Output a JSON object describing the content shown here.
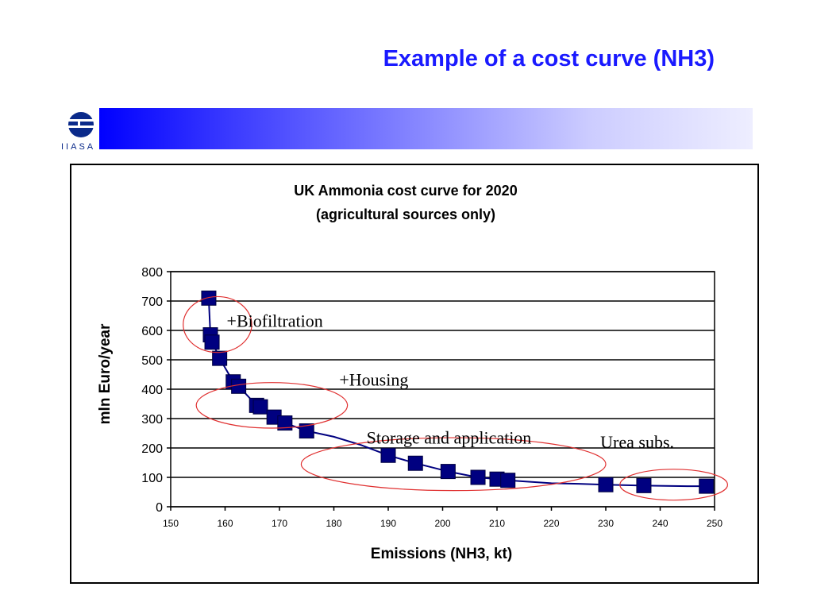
{
  "slide": {
    "title": "Example of a cost curve (NH3)",
    "logo_text": "IIASA"
  },
  "colors": {
    "title": "#1a1aff",
    "banner_start": "#0000ff",
    "banner_end": "#eeeeff",
    "series": "#000080",
    "ellipse": "#e03030"
  },
  "chart_data": {
    "type": "line",
    "title": "UK Ammonia cost curve for 2020",
    "subtitle": "(agricultural sources only)",
    "xlabel": "Emissions (NH3, kt)",
    "ylabel": "mln Euro/year",
    "xlim": [
      150,
      250
    ],
    "ylim": [
      0,
      800
    ],
    "xticks": [
      150,
      160,
      170,
      180,
      190,
      200,
      210,
      220,
      230,
      240,
      250
    ],
    "yticks": [
      0,
      100,
      200,
      300,
      400,
      500,
      600,
      700,
      800
    ],
    "grid": "horizontal",
    "series": [
      {
        "line": [
          [
            157,
            710
          ],
          [
            157.3,
            585
          ],
          [
            157.6,
            560
          ],
          [
            157.9,
            550
          ],
          [
            159,
            505
          ],
          [
            161.5,
            425
          ],
          [
            162.5,
            410
          ],
          [
            165.8,
            345
          ],
          [
            166.5,
            340
          ],
          [
            169,
            305
          ],
          [
            171,
            285
          ],
          [
            175,
            258
          ],
          [
            180,
            238
          ],
          [
            185,
            210
          ],
          [
            190,
            175
          ],
          [
            195,
            148
          ],
          [
            200,
            125
          ],
          [
            201,
            120
          ],
          [
            206.5,
            100
          ],
          [
            210,
            94
          ],
          [
            212,
            90
          ],
          [
            220,
            80
          ],
          [
            225,
            78
          ],
          [
            230,
            75
          ],
          [
            237,
            72
          ],
          [
            245,
            70
          ],
          [
            248.5,
            70
          ]
        ],
        "markers": [
          [
            157,
            710
          ],
          [
            157.3,
            585
          ],
          [
            157.6,
            560
          ],
          [
            159,
            505
          ],
          [
            161.5,
            425
          ],
          [
            162.5,
            410
          ],
          [
            165.8,
            345
          ],
          [
            166.5,
            340
          ],
          [
            169,
            305
          ],
          [
            171,
            285
          ],
          [
            175,
            258
          ],
          [
            190,
            175
          ],
          [
            195,
            148
          ],
          [
            201,
            120
          ],
          [
            206.5,
            100
          ],
          [
            210,
            94
          ],
          [
            212,
            90
          ],
          [
            230,
            75
          ],
          [
            237,
            72
          ],
          [
            248.5,
            70
          ]
        ]
      }
    ],
    "annotations": [
      {
        "text": "+Biofiltration",
        "x": 160.3,
        "y": 612
      },
      {
        "text": "+Housing",
        "x": 181,
        "y": 412
      },
      {
        "text": "Storage and application",
        "x": 186,
        "y": 215
      },
      {
        "text": "Urea subs.",
        "x": 229,
        "y": 200
      }
    ],
    "ellipses": [
      {
        "cx": 158.6,
        "cy": 620,
        "rx": 6.3,
        "ry": 190
      },
      {
        "cx": 168.6,
        "cy": 345,
        "rx": 13.9,
        "ry": 155
      },
      {
        "cx": 202,
        "cy": 145,
        "rx": 28,
        "ry": 180
      },
      {
        "cx": 242.5,
        "cy": 75,
        "rx": 9.9,
        "ry": 105
      }
    ]
  }
}
